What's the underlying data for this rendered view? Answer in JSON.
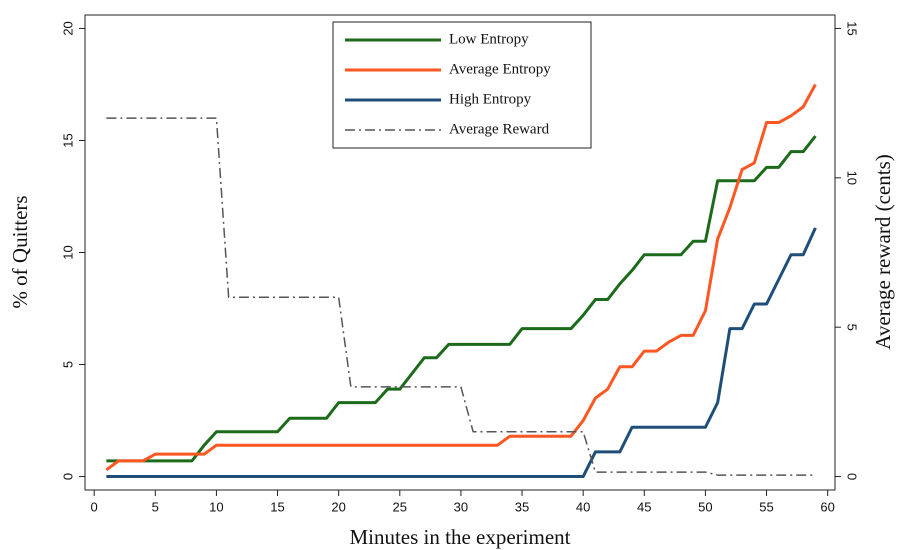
{
  "chart_data": {
    "type": "line",
    "x_label": "Minutes in the experiment",
    "y_label": "% of Quitters",
    "y2_label": "Average reward (cents)",
    "x": [
      1,
      2,
      3,
      4,
      5,
      6,
      7,
      8,
      9,
      10,
      11,
      12,
      13,
      14,
      15,
      16,
      17,
      18,
      19,
      20,
      21,
      22,
      23,
      24,
      25,
      26,
      27,
      28,
      29,
      30,
      31,
      32,
      33,
      34,
      35,
      36,
      37,
      38,
      39,
      40,
      41,
      42,
      43,
      44,
      45,
      46,
      47,
      48,
      49,
      50,
      51,
      52,
      53,
      54,
      55,
      56,
      57,
      58,
      59
    ],
    "series": [
      {
        "name": "Low Entropy",
        "color": "#1b6b1b",
        "values": [
          0.7,
          0.7,
          0.7,
          0.7,
          0.7,
          0.7,
          0.7,
          0.7,
          1.4,
          2.0,
          2.0,
          2.0,
          2.0,
          2.0,
          2.0,
          2.6,
          2.6,
          2.6,
          2.6,
          3.3,
          3.3,
          3.3,
          3.3,
          3.9,
          3.9,
          4.6,
          5.3,
          5.3,
          5.9,
          5.9,
          5.9,
          5.9,
          5.9,
          5.9,
          6.6,
          6.6,
          6.6,
          6.6,
          6.6,
          7.2,
          7.9,
          7.9,
          8.6,
          9.2,
          9.9,
          9.9,
          9.9,
          9.9,
          10.5,
          10.5,
          13.2,
          13.2,
          13.2,
          13.2,
          13.8,
          13.8,
          14.5,
          14.5,
          15.2
        ]
      },
      {
        "name": "Average Entropy",
        "color": "#ff5722",
        "values": [
          0.3,
          0.7,
          0.7,
          0.7,
          1.0,
          1.0,
          1.0,
          1.0,
          1.0,
          1.4,
          1.4,
          1.4,
          1.4,
          1.4,
          1.4,
          1.4,
          1.4,
          1.4,
          1.4,
          1.4,
          1.4,
          1.4,
          1.4,
          1.4,
          1.4,
          1.4,
          1.4,
          1.4,
          1.4,
          1.4,
          1.4,
          1.4,
          1.4,
          1.8,
          1.8,
          1.8,
          1.8,
          1.8,
          1.8,
          2.5,
          3.5,
          3.9,
          4.9,
          4.9,
          5.6,
          5.6,
          6.0,
          6.3,
          6.3,
          7.4,
          10.6,
          12.0,
          13.7,
          14.0,
          15.8,
          15.8,
          16.1,
          16.5,
          17.5
        ]
      },
      {
        "name": "High Entropy",
        "color": "#1f4e79",
        "values": [
          0,
          0,
          0,
          0,
          0,
          0,
          0,
          0,
          0,
          0,
          0,
          0,
          0,
          0,
          0,
          0,
          0,
          0,
          0,
          0,
          0,
          0,
          0,
          0,
          0,
          0,
          0,
          0,
          0,
          0,
          0,
          0,
          0,
          0,
          0,
          0,
          0,
          0,
          0,
          0,
          1.1,
          1.1,
          1.1,
          2.2,
          2.2,
          2.2,
          2.2,
          2.2,
          2.2,
          2.2,
          3.3,
          6.6,
          6.6,
          7.7,
          7.7,
          8.8,
          9.9,
          9.9,
          11.1
        ]
      },
      {
        "name": "Average Reward",
        "color": "#555555",
        "dash": true,
        "axis": "y2",
        "values": [
          12,
          12,
          12,
          12,
          12,
          12,
          12,
          12,
          12,
          12,
          6,
          6,
          6,
          6,
          6,
          6,
          6,
          6,
          6,
          6,
          3,
          3,
          3,
          3,
          3,
          3,
          3,
          3,
          3,
          3,
          1.5,
          1.5,
          1.5,
          1.5,
          1.5,
          1.5,
          1.5,
          1.5,
          1.5,
          1.5,
          0.15,
          0.15,
          0.15,
          0.15,
          0.15,
          0.15,
          0.15,
          0.15,
          0.15,
          0.15,
          0.05,
          0.05,
          0.05,
          0.05,
          0.05,
          0.05,
          0.05,
          0.05,
          0.05
        ]
      }
    ],
    "xlim": [
      -0.75,
      60.6
    ],
    "xticks": [
      0,
      5,
      10,
      15,
      20,
      25,
      30,
      35,
      40,
      45,
      50,
      55,
      60
    ],
    "ylim": [
      -0.6,
      20.6
    ],
    "yticks": [
      0,
      5,
      10,
      15,
      20
    ],
    "y2lim": [
      -0.45,
      15.45
    ],
    "y2ticks": [
      0,
      5,
      10,
      15
    ],
    "grid": false,
    "legend": "top-center"
  }
}
